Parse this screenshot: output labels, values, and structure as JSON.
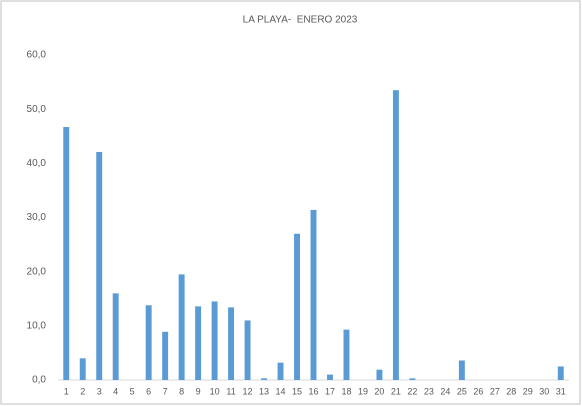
{
  "chart_data": {
    "type": "bar",
    "title": "LA PLAYA-  ENERO 2023",
    "categories": [
      "1",
      "2",
      "3",
      "4",
      "5",
      "6",
      "7",
      "8",
      "9",
      "10",
      "11",
      "12",
      "13",
      "14",
      "15",
      "16",
      "17",
      "18",
      "19",
      "20",
      "21",
      "22",
      "23",
      "24",
      "25",
      "26",
      "27",
      "28",
      "29",
      "30",
      "31"
    ],
    "values": [
      46.7,
      4.0,
      42.1,
      16.0,
      0,
      13.8,
      8.9,
      19.5,
      13.6,
      14.5,
      13.4,
      11.0,
      0.3,
      3.2,
      27.0,
      31.4,
      1.0,
      9.3,
      0,
      1.9,
      53.5,
      0.3,
      0,
      0,
      3.6,
      0,
      0,
      0,
      0,
      0,
      2.5
    ],
    "color": "#5b9bd5",
    "ylim": [
      0,
      60
    ],
    "yticks": [
      {
        "value": 0,
        "label": "0,0"
      },
      {
        "value": 10,
        "label": "10,0"
      },
      {
        "value": 20,
        "label": "20,0"
      },
      {
        "value": 30,
        "label": "30,0"
      },
      {
        "value": 40,
        "label": "40,0"
      },
      {
        "value": 50,
        "label": "50,0"
      },
      {
        "value": 60,
        "label": "60,0"
      }
    ],
    "grid": false
  }
}
